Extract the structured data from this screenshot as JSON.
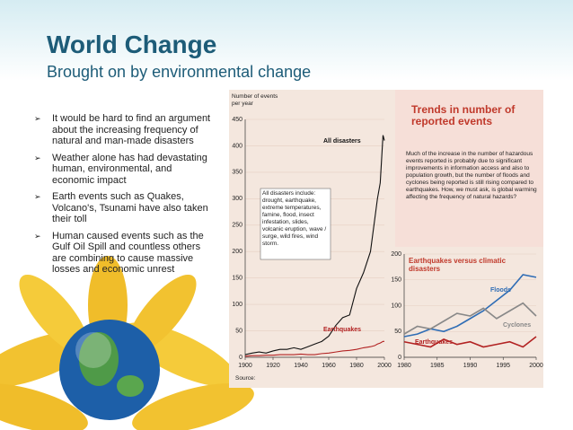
{
  "slide": {
    "title": "World Change",
    "subtitle": "Brought on by environmental change",
    "bullets": [
      "It would be hard to find an argument about the increasing frequency of natural and man-made disasters",
      "Weather alone has had devastating human, environmental, and economic impact",
      "Earth events such as Quakes, Volcano's, Tsunami have also taken their toll",
      "Human caused events such as the Gulf Oil Spill and countless others are combining to cause massive losses and economic unrest"
    ]
  },
  "chart_data": [
    {
      "type": "line",
      "title": "Trends in number of reported events",
      "y_label": "Number of events per year",
      "annotations": [
        "All disasters include: drought, earthquake, extreme temperatures, famine, flood, insect infestation, slides, volcanic eruption, wave / surge, wild fires, wind storm.",
        "Much of the increase in the number of hazardous events reported is probably due to significant improvements in information access and also to population growth, but the number of floods and cyclones being reported is still rising compared to earthquakes. How, we must ask, is global warming affecting the frequency of natural hazards?",
        "Source:"
      ],
      "x": [
        1900,
        1905,
        1910,
        1915,
        1920,
        1925,
        1930,
        1935,
        1940,
        1945,
        1950,
        1955,
        1960,
        1965,
        1970,
        1975,
        1980,
        1985,
        1990,
        1993,
        1995,
        1997,
        1999,
        2000
      ],
      "series": [
        {
          "name": "All disasters",
          "color": "#111111",
          "values": [
            5,
            8,
            10,
            8,
            12,
            15,
            15,
            18,
            15,
            20,
            25,
            30,
            40,
            60,
            75,
            80,
            130,
            160,
            200,
            260,
            300,
            330,
            420,
            410
          ]
        },
        {
          "name": "Earthquakes",
          "color": "#b22222",
          "values": [
            2,
            3,
            3,
            4,
            4,
            5,
            5,
            5,
            6,
            5,
            5,
            7,
            8,
            10,
            12,
            13,
            15,
            18,
            20,
            22,
            25,
            27,
            30,
            30
          ]
        }
      ],
      "xlim": [
        1900,
        2000
      ],
      "xticks": [
        1900,
        1920,
        1940,
        1960,
        1980,
        2000
      ],
      "ylim": [
        0,
        450
      ],
      "yticks": [
        0,
        50,
        100,
        150,
        200,
        250,
        300,
        350,
        400,
        450
      ],
      "grid": true
    },
    {
      "type": "line",
      "title": "Earthquakes versus climatic disasters",
      "x": [
        1980,
        1982,
        1984,
        1986,
        1988,
        1990,
        1992,
        1994,
        1996,
        1998,
        2000
      ],
      "series": [
        {
          "name": "Floods",
          "color": "#2f6db5",
          "values": [
            40,
            45,
            55,
            50,
            60,
            75,
            90,
            110,
            130,
            160,
            155
          ]
        },
        {
          "name": "Cyclones",
          "color": "#888888",
          "values": [
            45,
            60,
            55,
            70,
            85,
            80,
            95,
            75,
            90,
            105,
            80
          ]
        },
        {
          "name": "Earthquakes",
          "color": "#b22222",
          "values": [
            30,
            25,
            20,
            35,
            25,
            30,
            20,
            25,
            30,
            20,
            40
          ]
        }
      ],
      "xlim": [
        1980,
        2000
      ],
      "xticks": [
        1980,
        1985,
        1990,
        1995,
        2000
      ],
      "ylim": [
        0,
        200
      ],
      "yticks": [
        0,
        50,
        100,
        150,
        200
      ],
      "grid": true
    }
  ]
}
